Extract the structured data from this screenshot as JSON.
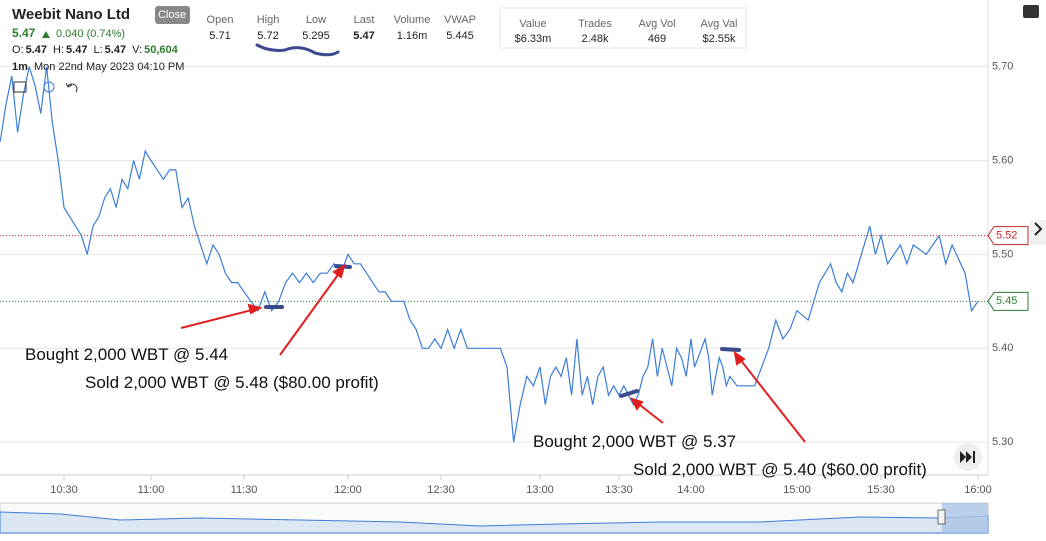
{
  "header": {
    "company": "Weebit Nano Ltd",
    "close_button": "Close",
    "price": "5.47",
    "change": "0.040 (0.74%)",
    "ohlc": [
      {
        "label": "O:",
        "value": "5.47"
      },
      {
        "label": "H:",
        "value": "5.47"
      },
      {
        "label": "L:",
        "value": "5.47"
      },
      {
        "label": "V:",
        "value": "50,604"
      }
    ],
    "interval": "1m",
    "datetime": "Mon 22nd May 2023 04:10 PM",
    "stats": [
      {
        "label": "Open",
        "value": "5.71"
      },
      {
        "label": "High",
        "value": "5.72"
      },
      {
        "label": "Low",
        "value": "5.295"
      },
      {
        "label": "Last",
        "value": "5.47"
      },
      {
        "label": "Volume",
        "value": "1.16m"
      },
      {
        "label": "VWAP",
        "value": "5.445"
      }
    ],
    "stats2": [
      {
        "label": "Value",
        "value": "$6.33m"
      },
      {
        "label": "Trades",
        "value": "2.48k"
      },
      {
        "label": "Avg Vol",
        "value": "469"
      },
      {
        "label": "Avg Val",
        "value": "$2.55k"
      }
    ]
  },
  "chart_data": {
    "type": "line",
    "color": "#3b7dd8",
    "x": [
      "10:08",
      "10:10",
      "10:12",
      "10:14",
      "10:16",
      "10:18",
      "10:20",
      "10:22",
      "10:24",
      "10:26",
      "10:28",
      "10:30",
      "10:32",
      "10:34",
      "10:36",
      "10:38",
      "10:40",
      "10:42",
      "10:44",
      "10:46",
      "10:48",
      "10:50",
      "10:52",
      "10:54",
      "10:56",
      "10:58",
      "11:00",
      "11:02",
      "11:04",
      "11:06",
      "11:08",
      "11:10",
      "11:12",
      "11:14",
      "11:16",
      "11:18",
      "11:20",
      "11:22",
      "11:24",
      "11:26",
      "11:28",
      "11:30",
      "11:32",
      "11:34",
      "11:36",
      "11:38",
      "11:40",
      "11:42",
      "11:44",
      "11:46",
      "11:48",
      "11:50",
      "11:52",
      "11:54",
      "11:56",
      "11:58",
      "12:00",
      "12:02",
      "12:04",
      "12:06",
      "12:08",
      "12:10",
      "12:12",
      "12:14",
      "12:16",
      "12:18",
      "12:20",
      "12:22",
      "12:24",
      "12:26",
      "12:28",
      "12:30",
      "12:32",
      "12:34",
      "12:36",
      "12:38",
      "12:40",
      "12:44",
      "12:48",
      "12:50",
      "12:52",
      "12:54",
      "12:56",
      "12:58",
      "13:00",
      "13:02",
      "13:04",
      "13:06",
      "13:08",
      "13:10",
      "13:12",
      "13:14",
      "13:16",
      "13:18",
      "13:20",
      "13:22",
      "13:24",
      "13:26",
      "13:28",
      "13:30",
      "13:32",
      "13:34",
      "13:36",
      "13:38",
      "13:40",
      "13:42",
      "13:44",
      "13:46",
      "13:48",
      "13:50",
      "13:52",
      "13:54",
      "13:56",
      "13:58",
      "14:00",
      "14:02",
      "14:04",
      "14:06",
      "14:08",
      "14:10",
      "14:12",
      "14:14",
      "14:16",
      "14:18",
      "14:20",
      "14:22",
      "14:26",
      "14:30",
      "14:36",
      "14:40",
      "14:44",
      "14:48",
      "14:50",
      "14:52",
      "14:56",
      "15:00",
      "15:04",
      "15:08",
      "15:12",
      "15:14",
      "15:16",
      "15:18",
      "15:20",
      "15:24",
      "15:26",
      "15:28",
      "15:30",
      "15:32",
      "15:36",
      "15:38",
      "15:40",
      "15:44",
      "15:48",
      "15:50",
      "15:52",
      "15:56",
      "15:58",
      "16:00"
    ],
    "values": [
      5.62,
      5.66,
      5.69,
      5.63,
      5.67,
      5.7,
      5.68,
      5.65,
      5.7,
      5.64,
      5.6,
      5.55,
      5.54,
      5.53,
      5.52,
      5.5,
      5.53,
      5.54,
      5.56,
      5.57,
      5.55,
      5.58,
      5.57,
      5.6,
      5.58,
      5.61,
      5.6,
      5.59,
      5.58,
      5.59,
      5.59,
      5.55,
      5.56,
      5.53,
      5.51,
      5.49,
      5.51,
      5.5,
      5.48,
      5.47,
      5.47,
      5.46,
      5.45,
      5.44,
      5.46,
      5.44,
      5.45,
      5.47,
      5.48,
      5.47,
      5.48,
      5.47,
      5.48,
      5.48,
      5.49,
      5.48,
      5.5,
      5.49,
      5.49,
      5.48,
      5.47,
      5.46,
      5.46,
      5.45,
      5.45,
      5.45,
      5.43,
      5.42,
      5.4,
      5.4,
      5.41,
      5.4,
      5.42,
      5.4,
      5.42,
      5.4,
      5.4,
      5.4,
      5.4,
      5.38,
      5.3,
      5.34,
      5.37,
      5.36,
      5.38,
      5.34,
      5.37,
      5.38,
      5.37,
      5.39,
      5.35,
      5.41,
      5.35,
      5.37,
      5.34,
      5.37,
      5.38,
      5.35,
      5.36,
      5.35,
      5.36,
      5.35,
      5.34,
      5.35,
      5.37,
      5.38,
      5.41,
      5.37,
      5.4,
      5.38,
      5.36,
      5.4,
      5.39,
      5.37,
      5.41,
      5.38,
      5.39,
      5.4,
      5.41,
      5.39,
      5.35,
      5.37,
      5.39,
      5.38,
      5.36,
      5.37,
      5.36,
      5.36,
      5.36,
      5.38,
      5.4,
      5.43,
      5.42,
      5.41,
      5.42,
      5.44,
      5.43,
      5.47,
      5.49,
      5.47,
      5.46,
      5.48,
      5.47,
      5.51,
      5.53,
      5.5,
      5.52,
      5.49,
      5.51,
      5.49,
      5.51,
      5.5,
      5.52,
      5.49,
      5.51,
      5.48,
      5.44,
      5.45
    ],
    "ylim": [
      5.265,
      5.771
    ],
    "yticks": [
      {
        "value": 5.3,
        "label": "5.30"
      },
      {
        "value": 5.4,
        "label": "5.40"
      },
      {
        "value": 5.5,
        "label": "5.50"
      },
      {
        "value": 5.6,
        "label": "5.60"
      },
      {
        "value": 5.7,
        "label": "5.70"
      }
    ],
    "xticks": [
      "10:30",
      "11:00",
      "11:30",
      "12:00",
      "12:30",
      "13:00",
      "13:30",
      "14:00",
      "15:00",
      "15:30",
      "16:00"
    ],
    "grid": true,
    "price_lines": [
      {
        "value": 5.52,
        "color": "#c62828"
      },
      {
        "value": 5.45,
        "color": "#2e7d32"
      }
    ],
    "annotations": [
      "Bought 2,000 WBT @ 5.44",
      "Sold 2,000 WBT @ 5.48 ($80.00 profit)",
      "Bought 2,000 WBT @ 5.37",
      "Sold 2,000 WBT @ 5.40 ($60.00 profit)"
    ]
  }
}
